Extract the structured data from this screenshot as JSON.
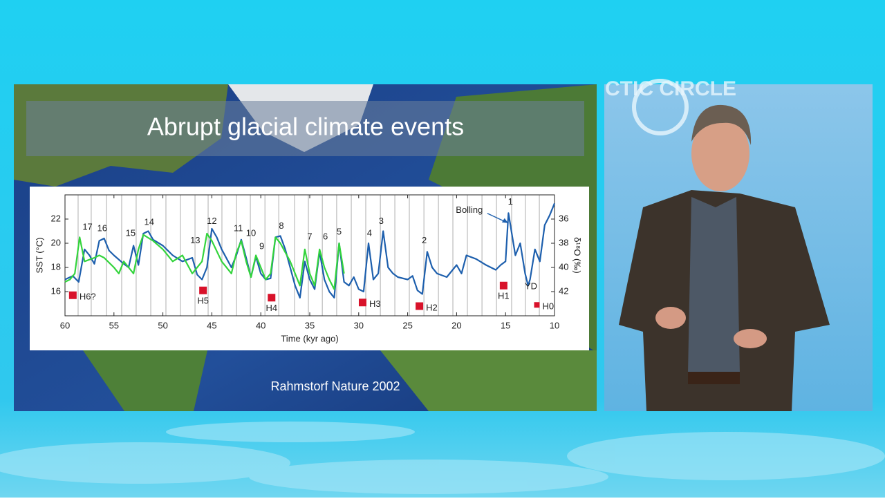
{
  "slide": {
    "title": "Abrupt glacial climate events",
    "credit": "Rahmstorf Nature 2002"
  },
  "chart_data": {
    "type": "line",
    "xlabel": "Time (kyr ago)",
    "ylabel": "SST (°C)",
    "y2label": "δ¹⁸O (‰)",
    "xlim": [
      60,
      10
    ],
    "xticks": [
      60,
      55,
      50,
      45,
      40,
      35,
      30,
      25,
      20,
      15,
      10
    ],
    "ylim": [
      14,
      24
    ],
    "yticks": [
      16,
      18,
      20,
      22
    ],
    "y2lim": [
      44,
      34
    ],
    "y2ticks": [
      36,
      38,
      40,
      42
    ],
    "vlines": [
      58.66,
      57.32,
      55.76,
      54.21,
      52.73,
      51.24,
      49.69,
      48.21,
      46.72,
      45.38,
      43.97,
      42.48,
      41.07,
      39.58,
      38.17,
      36.55,
      35.14,
      33.72,
      32.25,
      30.76,
      29.28,
      27.79,
      26.31,
      24.83,
      23.34,
      21.86,
      20.38,
      18.9,
      17.41,
      15.93,
      14.38,
      12.97,
      11.55
    ],
    "series": [
      {
        "color": "#1d5fad",
        "x": [
          60,
          59.2,
          58.6,
          58,
          57.5,
          57,
          56.5,
          56,
          55.5,
          55,
          54,
          53.5,
          53,
          52.5,
          52,
          51.5,
          51,
          50,
          49,
          48,
          47,
          46.5,
          46,
          45.5,
          45,
          44.5,
          44,
          43,
          42.5,
          42,
          41.5,
          41,
          40.5,
          40,
          39.5,
          39,
          38.5,
          38,
          37.5,
          37,
          36.5,
          36,
          35.5,
          35,
          34.5,
          34,
          33.5,
          33,
          32.5,
          32,
          31.5,
          31,
          30.5,
          30,
          29.5,
          29,
          28.5,
          28,
          27.5,
          27,
          26.5,
          26,
          25,
          24.5,
          24,
          23.5,
          23,
          22.5,
          22,
          21,
          20,
          19.5,
          19,
          18,
          17,
          16,
          15.5,
          15,
          14.7,
          14.3,
          14,
          13.5,
          13,
          12.7,
          12.5,
          12,
          11.5,
          11,
          10.5,
          10
        ],
        "values": [
          17.0,
          17.3,
          16.8,
          19.5,
          19.0,
          18.3,
          20.2,
          20.4,
          19.4,
          19.0,
          18.3,
          18.0,
          19.8,
          18.2,
          20.8,
          21.0,
          20.3,
          19.8,
          19.0,
          18.5,
          18.8,
          17.4,
          17.0,
          18.0,
          21.2,
          20.5,
          19.5,
          18.0,
          19.0,
          20.3,
          18.8,
          17.2,
          18.9,
          17.5,
          17.0,
          17.1,
          20.5,
          20.6,
          19.5,
          18.0,
          16.5,
          15.5,
          18.5,
          17.0,
          16.2,
          19.3,
          17.0,
          16.0,
          15.5,
          20.0,
          16.8,
          16.5,
          17.2,
          16.2,
          16.0,
          20.0,
          17.0,
          17.5,
          21.0,
          18.0,
          17.5,
          17.2,
          17.0,
          17.3,
          16.1,
          15.8,
          19.3,
          18.0,
          17.5,
          17.2,
          18.2,
          17.5,
          19.0,
          18.7,
          18.2,
          17.8,
          18.2,
          18.5,
          22.5,
          20.5,
          19.0,
          20.0,
          17.5,
          16.5,
          17.0,
          19.5,
          18.5,
          21.5,
          22.3,
          23.3
        ]
      },
      {
        "color": "#33d43c",
        "axis": "y2",
        "x": [
          60,
          59.5,
          59,
          58.5,
          58,
          57,
          56.5,
          56,
          55,
          54.5,
          54,
          53,
          52.5,
          52,
          51,
          50,
          49,
          48,
          47,
          46.5,
          46,
          45.5,
          45,
          44,
          43,
          42.5,
          42,
          41.5,
          41,
          40.5,
          40,
          39.5,
          39,
          38.5,
          38,
          37,
          36.5,
          36,
          35.5,
          35,
          34.5,
          34,
          33.5,
          33,
          32.5,
          32,
          31.5
        ],
        "values": [
          41.2,
          41.0,
          40.5,
          37.5,
          39.5,
          39.2,
          39.0,
          39.2,
          40.0,
          40.5,
          39.5,
          40.5,
          38.5,
          37.3,
          37.8,
          38.5,
          39.5,
          39.0,
          40.5,
          40.0,
          39.5,
          37.2,
          37.8,
          39.5,
          40.5,
          38.8,
          37.8,
          39.5,
          40.8,
          39.0,
          40.0,
          41.0,
          40.5,
          37.5,
          38.0,
          39.5,
          40.5,
          41.5,
          38.5,
          40.5,
          41.5,
          38.5,
          40.0,
          41.0,
          41.8,
          38.0,
          40.5
        ]
      }
    ],
    "annotations": [
      {
        "label": "17",
        "x": 57.7,
        "y": 21.3
      },
      {
        "label": "16",
        "x": 56.2,
        "y": 21.2
      },
      {
        "label": "15",
        "x": 53.3,
        "y": 20.8
      },
      {
        "label": "14",
        "x": 51.4,
        "y": 21.7
      },
      {
        "label": "13",
        "x": 46.7,
        "y": 20.2
      },
      {
        "label": "12",
        "x": 45.0,
        "y": 21.8
      },
      {
        "label": "11",
        "x": 42.3,
        "y": 21.2
      },
      {
        "label": "10",
        "x": 41.0,
        "y": 20.8
      },
      {
        "label": "9",
        "x": 39.9,
        "y": 19.7
      },
      {
        "label": "8",
        "x": 37.9,
        "y": 21.4
      },
      {
        "label": "7",
        "x": 35.0,
        "y": 20.5
      },
      {
        "label": "6",
        "x": 33.4,
        "y": 20.5
      },
      {
        "label": "5",
        "x": 32.0,
        "y": 20.9
      },
      {
        "label": "4",
        "x": 28.9,
        "y": 20.8
      },
      {
        "label": "3",
        "x": 27.7,
        "y": 21.8
      },
      {
        "label": "2",
        "x": 23.3,
        "y": 20.2
      },
      {
        "label": "1",
        "x": 14.5,
        "y": 23.4
      },
      {
        "label": "YD",
        "x": 12.4,
        "y": 16.4
      },
      {
        "label": "Bolling",
        "x": 18.7,
        "y": 22.7
      }
    ],
    "events": [
      {
        "label": "H6?",
        "x": 59.2,
        "y": 15.7,
        "side": "right"
      },
      {
        "label": "H5",
        "x": 45.9,
        "y": 16.1,
        "side": "below"
      },
      {
        "label": "H4",
        "x": 38.9,
        "y": 15.5,
        "side": "below"
      },
      {
        "label": "H3",
        "x": 29.6,
        "y": 15.1,
        "side": "right"
      },
      {
        "label": "H2",
        "x": 23.8,
        "y": 14.8,
        "side": "right"
      },
      {
        "label": "H1",
        "x": 15.2,
        "y": 16.5,
        "side": "below"
      },
      {
        "label": "H0",
        "x": 11.8,
        "y": 14.9,
        "side": "right"
      }
    ]
  }
}
